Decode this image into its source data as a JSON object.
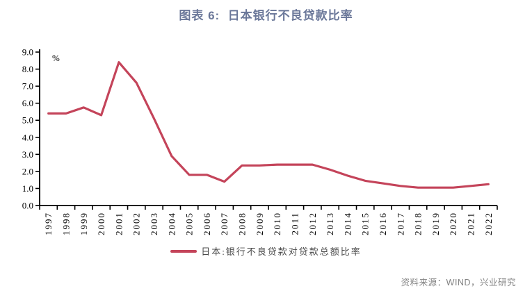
{
  "header": {
    "title": "图表 6:  日本银行不良贷款比率",
    "title_color": "#6A7799"
  },
  "chart_data": {
    "type": "line",
    "title": "图表 6:  日本银行不良贷款比率",
    "unit_label": "%",
    "categories": [
      "1997",
      "1998",
      "1999",
      "2000",
      "2001",
      "2002",
      "2003",
      "2004",
      "2005",
      "2006",
      "2007",
      "2008",
      "2009",
      "2010",
      "2011",
      "2012",
      "2013",
      "2014",
      "2015",
      "2016",
      "2017",
      "2018",
      "2019",
      "2020",
      "2021",
      "2022"
    ],
    "series": [
      {
        "name": "日本:银行不良贷款对贷款总额比率",
        "color": "#C4445A",
        "values": [
          5.4,
          5.4,
          5.75,
          5.3,
          8.4,
          7.2,
          5.1,
          2.9,
          1.8,
          1.8,
          1.4,
          2.35,
          2.35,
          2.4,
          2.4,
          2.4,
          2.1,
          1.75,
          1.45,
          1.3,
          1.15,
          1.05,
          1.05,
          1.05,
          1.15,
          1.25
        ]
      }
    ],
    "ylim": [
      0,
      9
    ],
    "ytick_labels": [
      "0.0",
      "1.0",
      "2.0",
      "3.0",
      "4.0",
      "5.0",
      "6.0",
      "7.0",
      "8.0",
      "9.0"
    ],
    "grid": false,
    "axis_color": "#000000",
    "legend_position": "bottom"
  },
  "legend": {
    "swatch_color": "#C4445A",
    "label": "日本:银行不良贷款对贷款总额比率"
  },
  "footer": {
    "source": "资料来源：WIND，兴业研究"
  }
}
